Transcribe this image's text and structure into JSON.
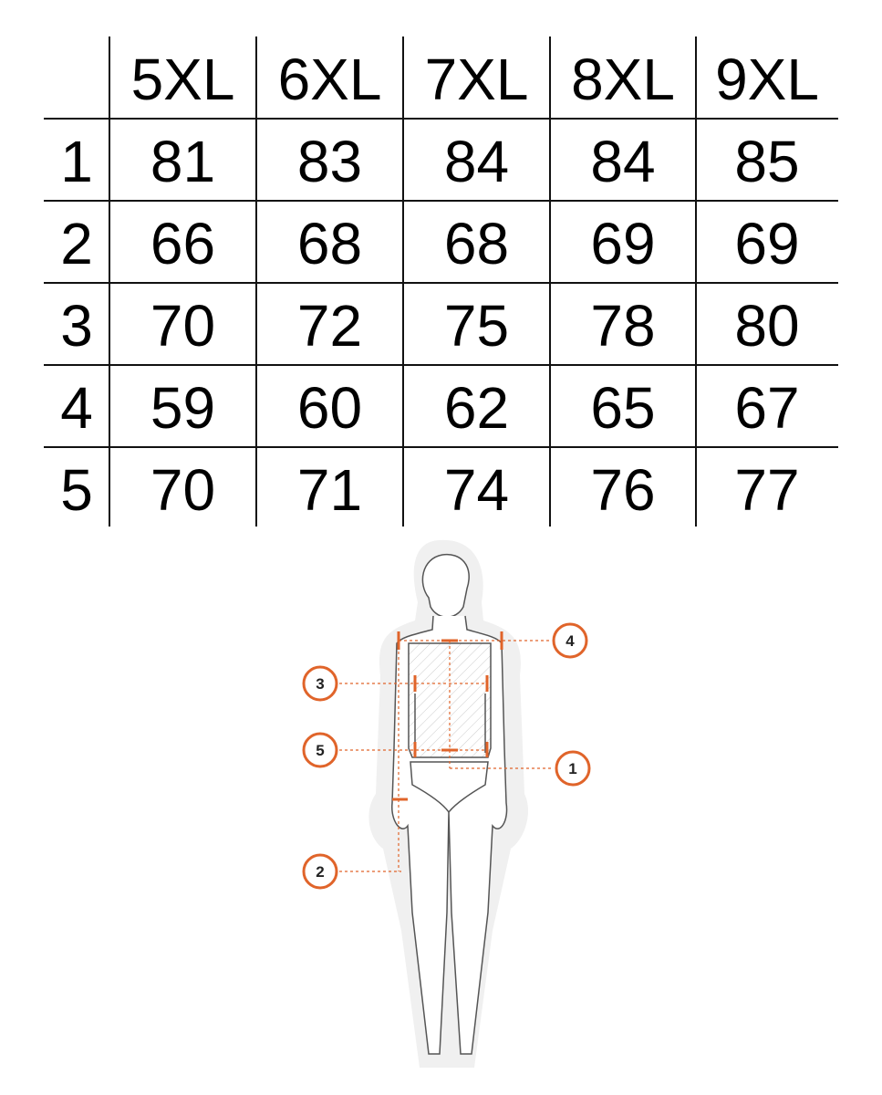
{
  "size_table": {
    "columns": [
      "5XL",
      "6XL",
      "7XL",
      "8XL",
      "9XL"
    ],
    "rows": [
      {
        "label": "1",
        "values": [
          "81",
          "83",
          "84",
          "84",
          "85"
        ]
      },
      {
        "label": "2",
        "values": [
          "66",
          "68",
          "68",
          "69",
          "69"
        ]
      },
      {
        "label": "3",
        "values": [
          "70",
          "72",
          "75",
          "78",
          "80"
        ]
      },
      {
        "label": "4",
        "values": [
          "59",
          "60",
          "62",
          "65",
          "67"
        ]
      },
      {
        "label": "5",
        "values": [
          "70",
          "71",
          "74",
          "76",
          "77"
        ]
      }
    ]
  },
  "diagram": {
    "callouts": [
      "1",
      "2",
      "3",
      "4",
      "5"
    ],
    "accent_color": "#e0642a"
  }
}
